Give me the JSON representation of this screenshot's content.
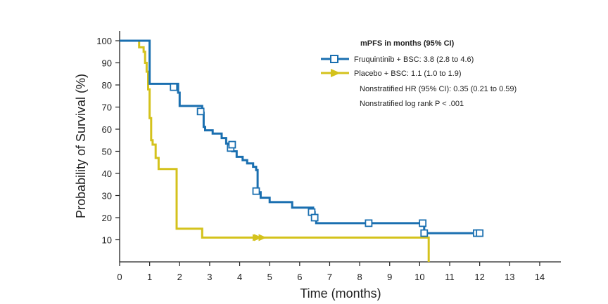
{
  "chart_data": {
    "type": "line",
    "title": "",
    "xlabel": "Time (months)",
    "ylabel": "Probability of Survival (%)",
    "xlim": [
      0,
      14.4
    ],
    "ylim": [
      0,
      100
    ],
    "xticks": [
      0,
      1,
      2,
      3,
      4,
      5,
      6,
      7,
      8,
      9,
      10,
      11,
      12,
      13,
      14
    ],
    "yticks": [
      10,
      20,
      30,
      40,
      50,
      60,
      70,
      80,
      90,
      100
    ],
    "legend_title": "mPFS in months (95% CI)",
    "annotations": [
      "Nonstratified HR (95% CI): 0.35 (0.21 to 0.59)",
      "Nonstratified log rank P < .001"
    ],
    "series": [
      {
        "name": "Fruquintinib + BSC: 3.8 (2.8 to 4.6)",
        "color": "#1a6fb0",
        "marker": "square",
        "steps": [
          [
            0,
            100
          ],
          [
            0.85,
            100
          ],
          [
            1.0,
            80.5
          ],
          [
            1.8,
            80.5
          ],
          [
            1.95,
            76.5
          ],
          [
            2.0,
            70.5
          ],
          [
            2.7,
            70.5
          ],
          [
            2.75,
            67.5
          ],
          [
            2.8,
            61
          ],
          [
            2.85,
            59.5
          ],
          [
            3.0,
            59.5
          ],
          [
            3.1,
            58
          ],
          [
            3.4,
            56
          ],
          [
            3.55,
            53.5
          ],
          [
            3.7,
            51.5
          ],
          [
            3.75,
            50
          ],
          [
            3.9,
            47.5
          ],
          [
            4.1,
            46
          ],
          [
            4.25,
            44.5
          ],
          [
            4.45,
            43
          ],
          [
            4.55,
            41.5
          ],
          [
            4.6,
            31.5
          ],
          [
            4.7,
            29
          ],
          [
            5.0,
            27
          ],
          [
            5.7,
            27
          ],
          [
            5.75,
            24.5
          ],
          [
            6.4,
            24.5
          ],
          [
            6.45,
            22.5
          ],
          [
            6.5,
            20
          ],
          [
            6.55,
            17.5
          ],
          [
            10.1,
            17.5
          ],
          [
            10.15,
            13
          ],
          [
            12.05,
            13
          ]
        ],
        "censors": [
          [
            1.8,
            79
          ],
          [
            2.7,
            68
          ],
          [
            3.7,
            51.5
          ],
          [
            3.75,
            53
          ],
          [
            4.55,
            32
          ],
          [
            6.4,
            22.5
          ],
          [
            6.5,
            20
          ],
          [
            8.3,
            17.5
          ],
          [
            10.1,
            17.5
          ],
          [
            10.15,
            13
          ],
          [
            11.9,
            13
          ],
          [
            12.0,
            13
          ]
        ]
      },
      {
        "name": "Placebo + BSC: 1.1 (1.0 to 1.9)",
        "color": "#d4c21c",
        "marker": "triangle",
        "steps": [
          [
            0,
            100
          ],
          [
            0.55,
            100
          ],
          [
            0.65,
            97
          ],
          [
            0.8,
            95
          ],
          [
            0.85,
            90
          ],
          [
            0.9,
            86
          ],
          [
            0.95,
            78
          ],
          [
            1.0,
            65
          ],
          [
            1.05,
            55
          ],
          [
            1.1,
            53
          ],
          [
            1.2,
            47
          ],
          [
            1.3,
            42
          ],
          [
            1.8,
            42
          ],
          [
            1.9,
            15
          ],
          [
            2.7,
            15
          ],
          [
            2.75,
            11
          ],
          [
            10.3,
            11
          ],
          [
            10.3,
            0
          ]
        ],
        "censors": [
          [
            4.55,
            11
          ],
          [
            4.6,
            11
          ],
          [
            4.75,
            11
          ]
        ]
      }
    ]
  }
}
